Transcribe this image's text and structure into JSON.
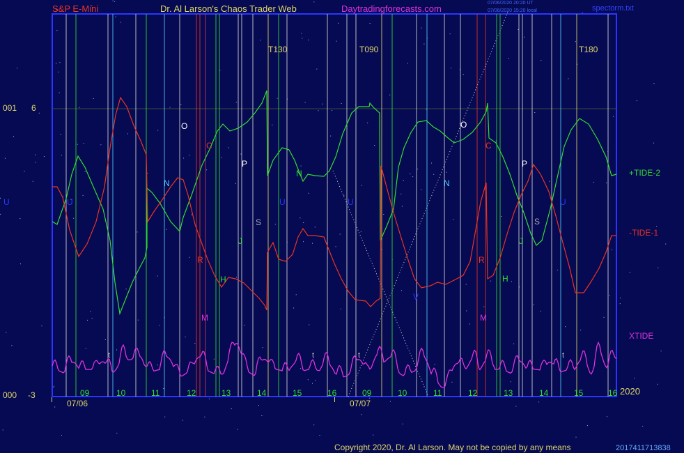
{
  "header": {
    "instrument": "S&P E-Mini",
    "author": "Dr. Al Larson's Chaos Trader Web",
    "site": "Daytradingforecasts.com",
    "stamp1": "07/06/2020 20:20 UT",
    "stamp2": "07/06/2020 15:20 local",
    "file": "spectorm.txt"
  },
  "footer": {
    "copyright": "Copyright 2020, Dr. Al Larson. May not be copied by any means",
    "code": "2017411713838"
  },
  "chart_data": {
    "type": "line",
    "left_labels": [
      "001",
      "000"
    ],
    "y_ticks": [
      6,
      -3
    ],
    "year_label": "2020",
    "x_hours": [
      "09",
      "10",
      "11",
      "12",
      "13",
      "14",
      "15",
      "16",
      "09",
      "10",
      "11",
      "12",
      "13",
      "14",
      "15",
      "16"
    ],
    "x_dates": [
      "07/06",
      "07/07"
    ],
    "markers": [
      "T130",
      "T090",
      "T180"
    ],
    "series": [
      {
        "name": "+TIDE-2",
        "color": "#33dd33"
      },
      {
        "name": "-TIDE-1",
        "color": "#ee3322"
      },
      {
        "name": "XTIDE",
        "color": "#dd33dd"
      }
    ],
    "event_letters": [
      "U",
      "U",
      "N",
      "O",
      "C",
      "R",
      "M",
      "H",
      "J",
      "P",
      "S",
      "U",
      "N",
      "U",
      "N",
      "V",
      "O",
      "C",
      "R",
      "M",
      "H",
      "J",
      "P",
      "S",
      "U"
    ],
    "small_letters": [
      "t",
      "t",
      "t",
      "t"
    ]
  }
}
